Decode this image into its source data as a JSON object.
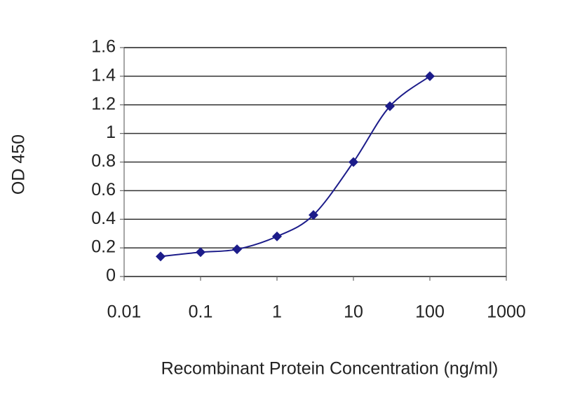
{
  "chart_data": {
    "type": "line",
    "xlabel": "Recombinant Protein Concentration (ng/ml)",
    "ylabel": "OD 450",
    "x": [
      0.03,
      0.1,
      0.3,
      1,
      3,
      10,
      30,
      100
    ],
    "values": [
      0.14,
      0.17,
      0.19,
      0.28,
      0.43,
      0.8,
      1.19,
      1.4
    ],
    "color": "#1c1c8a",
    "xscale": "log",
    "grid": true,
    "xlim": [
      0.01,
      1000
    ],
    "xticks": [
      0.01,
      0.1,
      1,
      10,
      100,
      1000
    ],
    "ylim": [
      0,
      1.6
    ],
    "yticks": [
      0,
      0.2,
      0.4,
      0.6,
      0.8,
      1,
      1.2,
      1.4,
      1.6
    ]
  }
}
